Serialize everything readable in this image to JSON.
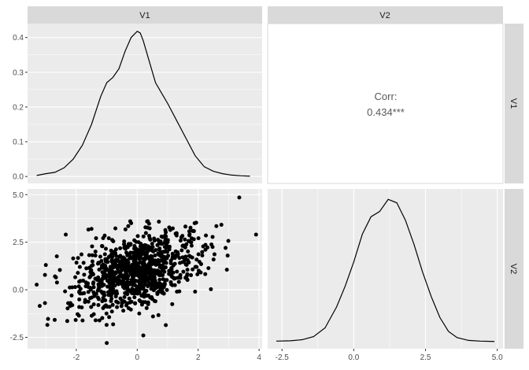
{
  "chart_data": {
    "type": "pairs",
    "variables": [
      "V1",
      "V2"
    ],
    "colors": {
      "panel_bg": "#ebebeb",
      "strip_bg": "#d9d9d9",
      "grid_major": "#ffffff",
      "line": "#000000",
      "point": "#000000",
      "corr_text": "#595959"
    },
    "grid": true,
    "panels": [
      {
        "id": "v1-density",
        "row": 0,
        "col": 0,
        "type": "line",
        "xlim": [
          -3.6,
          4.1
        ],
        "ylim": [
          -0.02,
          0.44
        ],
        "yticks": [
          0.0,
          0.1,
          0.2,
          0.3,
          0.4
        ],
        "ytick_labels": [
          "0.0",
          "0.1",
          "0.2",
          "0.3",
          "0.4"
        ],
        "x": [
          -3.3,
          -3.0,
          -2.7,
          -2.4,
          -2.1,
          -1.8,
          -1.5,
          -1.2,
          -1.0,
          -0.8,
          -0.6,
          -0.4,
          -0.2,
          0.0,
          0.1,
          0.2,
          0.4,
          0.6,
          0.8,
          1.0,
          1.3,
          1.6,
          1.9,
          2.2,
          2.5,
          2.8,
          3.1,
          3.4,
          3.7
        ],
        "y": [
          0.003,
          0.008,
          0.012,
          0.025,
          0.05,
          0.09,
          0.15,
          0.23,
          0.27,
          0.285,
          0.31,
          0.36,
          0.4,
          0.418,
          0.413,
          0.39,
          0.33,
          0.27,
          0.24,
          0.21,
          0.16,
          0.11,
          0.06,
          0.028,
          0.015,
          0.008,
          0.004,
          0.002,
          0.001
        ]
      },
      {
        "id": "corr",
        "row": 0,
        "col": 1,
        "type": "text",
        "label": "Corr:",
        "value": "0.434***"
      },
      {
        "id": "scatter",
        "row": 1,
        "col": 0,
        "type": "scatter",
        "xlim": [
          -3.6,
          4.1
        ],
        "ylim": [
          -3.1,
          5.3
        ],
        "xticks": [
          -2,
          0,
          2,
          4
        ],
        "xtick_labels": [
          "-2",
          "0",
          "2",
          "4"
        ],
        "yticks": [
          -2.5,
          0.0,
          2.5,
          5.0
        ],
        "ytick_labels": [
          "-2.5",
          "0.0",
          "2.5",
          "5.0"
        ],
        "cloud": {
          "n": 1000,
          "mean_x": 0.0,
          "mean_y": 1.0,
          "sd_x": 1.0,
          "sd_y": 1.0,
          "corr": 0.434
        },
        "points": [
          [
            3.35,
            4.85
          ],
          [
            3.9,
            2.9
          ],
          [
            -3.2,
            -0.85
          ],
          [
            -3.0,
            1.3
          ],
          [
            -2.95,
            -1.85
          ],
          [
            -1.0,
            -2.8
          ],
          [
            0.2,
            -2.4
          ],
          [
            -2.7,
            0.7
          ],
          [
            2.9,
            2.2
          ],
          [
            -1.5,
            3.2
          ],
          [
            1.9,
            -0.1
          ],
          [
            -0.2,
            3.5
          ]
        ]
      },
      {
        "id": "v2-density",
        "row": 1,
        "col": 1,
        "type": "line",
        "xlim": [
          -3.0,
          5.2
        ],
        "ylim": [
          -0.02,
          0.44
        ],
        "xticks": [
          -2.5,
          0.0,
          2.5,
          5.0
        ],
        "xtick_labels": [
          "-2.5",
          "0.0",
          "2.5",
          "5.0"
        ],
        "x": [
          -2.7,
          -2.2,
          -1.8,
          -1.4,
          -1.0,
          -0.6,
          -0.3,
          0.0,
          0.3,
          0.6,
          0.9,
          1.2,
          1.5,
          1.8,
          2.1,
          2.4,
          2.7,
          3.0,
          3.3,
          3.6,
          4.0,
          4.4,
          4.9
        ],
        "y": [
          0.002,
          0.003,
          0.006,
          0.015,
          0.04,
          0.1,
          0.16,
          0.23,
          0.31,
          0.36,
          0.375,
          0.41,
          0.4,
          0.35,
          0.28,
          0.2,
          0.13,
          0.07,
          0.03,
          0.012,
          0.004,
          0.002,
          0.001
        ]
      }
    ]
  }
}
